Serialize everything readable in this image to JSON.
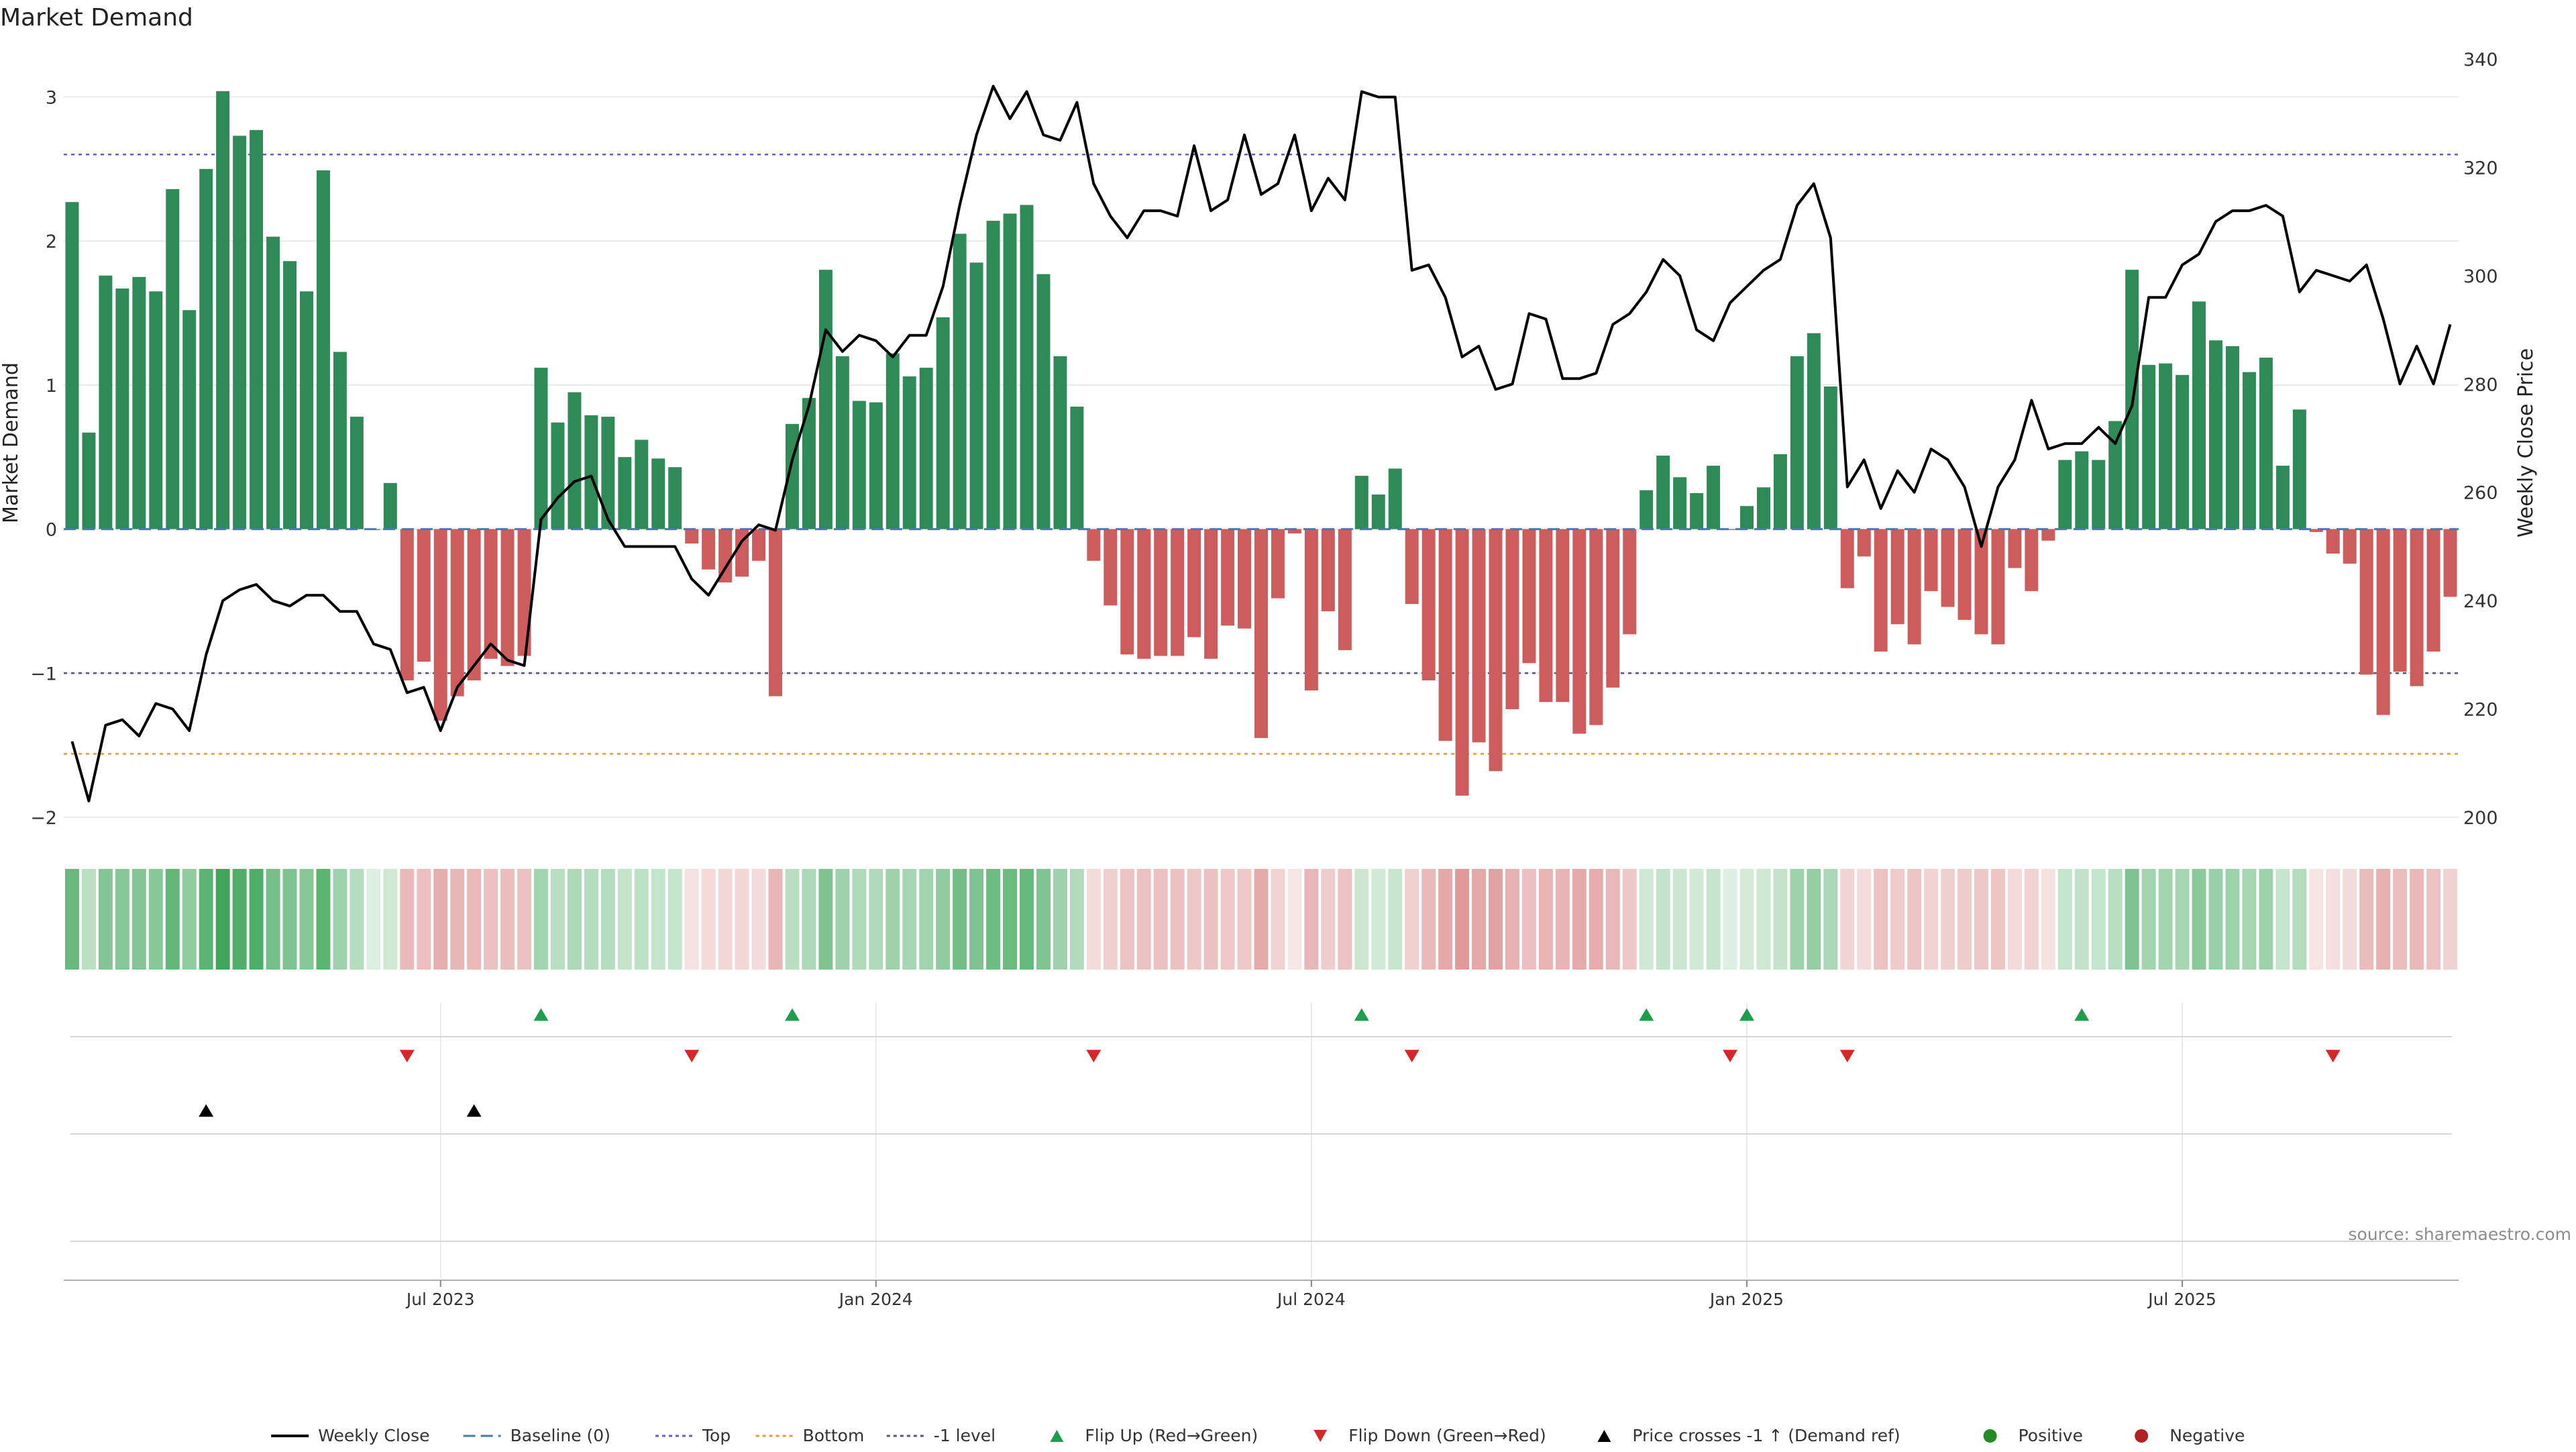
{
  "chart_data": {
    "type": "bar",
    "title": "Market Demand",
    "ylabel": "Market Demand",
    "y2label": "Weekly Close Price",
    "source": "source: sharemaestro.com",
    "ylim": [
      -2,
      3.3
    ],
    "y2lim": [
      200,
      341
    ],
    "yticks": [
      -2,
      -1,
      0,
      1,
      2,
      3
    ],
    "y2ticks": [
      200,
      220,
      240,
      260,
      280,
      300,
      320,
      340
    ],
    "xtick_labels": [
      {
        "label": "Jul 2023",
        "index": 22
      },
      {
        "label": "Jan 2024",
        "index": 48
      },
      {
        "label": "Jul 2024",
        "index": 74
      },
      {
        "label": "Jan 2025",
        "index": 100
      },
      {
        "label": "Jul 2025",
        "index": 126
      }
    ],
    "reference_lines": {
      "baseline": 0,
      "top": 2.6,
      "bottom": -1.56,
      "minus_one": -1
    },
    "series": [
      {
        "name": "Market Demand",
        "values": [
          2.27,
          0.67,
          1.76,
          1.67,
          1.75,
          1.65,
          2.36,
          1.52,
          2.5,
          3.04,
          2.73,
          2.77,
          2.03,
          1.86,
          1.65,
          2.49,
          1.23,
          0.78,
          0.0,
          0.32,
          -1.05,
          -0.92,
          -1.33,
          -1.16,
          -1.05,
          -0.9,
          -0.95,
          -0.88,
          1.12,
          0.74,
          0.95,
          0.79,
          0.78,
          0.5,
          0.62,
          0.49,
          0.43,
          -0.1,
          -0.28,
          -0.37,
          -0.33,
          -0.22,
          -1.16,
          0.73,
          0.91,
          1.8,
          1.2,
          0.89,
          0.88,
          1.22,
          1.06,
          1.12,
          1.47,
          2.05,
          1.85,
          2.14,
          2.19,
          2.25,
          1.77,
          1.2,
          0.85,
          -0.22,
          -0.53,
          -0.87,
          -0.9,
          -0.88,
          -0.88,
          -0.75,
          -0.9,
          -0.67,
          -0.69,
          -1.45,
          -0.48,
          -0.03,
          -1.12,
          -0.57,
          -0.84,
          0.37,
          0.24,
          0.42,
          -0.52,
          -1.05,
          -1.47,
          -1.85,
          -1.48,
          -1.68,
          -1.25,
          -0.93,
          -1.2,
          -1.2,
          -1.42,
          -1.36,
          -1.1,
          -0.73,
          0.27,
          0.51,
          0.36,
          0.25,
          0.44,
          0.0,
          0.16,
          0.29,
          0.52,
          1.2,
          1.36,
          0.99,
          -0.41,
          -0.19,
          -0.85,
          -0.66,
          -0.8,
          -0.43,
          -0.54,
          -0.63,
          -0.73,
          -0.8,
          -0.27,
          -0.43,
          -0.08,
          0.48,
          0.54,
          0.48,
          0.75,
          1.8,
          1.14,
          1.15,
          1.07,
          1.58,
          1.31,
          1.27,
          1.09,
          1.19,
          0.44,
          0.83,
          -0.02,
          -0.17,
          -0.24,
          -1.01,
          -1.29,
          -0.99,
          -1.09,
          -0.85,
          -0.47
        ]
      },
      {
        "name": "Weekly Close",
        "values": [
          214,
          203,
          217,
          218,
          215,
          221,
          220,
          216,
          230,
          240,
          242,
          243,
          240,
          239,
          241,
          241,
          238,
          238,
          232,
          231,
          223,
          224,
          216,
          224,
          228,
          232,
          229,
          228,
          255,
          259,
          262,
          263,
          255,
          250,
          250,
          250,
          250,
          244,
          241,
          246,
          251,
          254,
          253,
          266,
          276,
          290,
          286,
          289,
          288,
          285,
          289,
          289,
          298,
          313,
          326,
          335,
          329,
          334,
          326,
          325,
          332,
          317,
          311,
          307,
          312,
          312,
          311,
          324,
          312,
          314,
          326,
          315,
          317,
          326,
          312,
          318,
          314,
          334,
          333,
          333,
          301,
          302,
          296,
          285,
          287,
          279,
          280,
          293,
          292,
          281,
          281,
          282,
          291,
          293,
          297,
          303,
          300,
          290,
          288,
          295,
          298,
          301,
          303,
          313,
          317,
          307,
          261,
          266,
          257,
          264,
          260,
          268,
          266,
          261,
          250,
          261,
          266,
          277,
          268,
          269,
          269,
          272,
          269,
          276,
          296,
          296,
          302,
          304,
          310,
          312,
          312,
          313,
          311,
          297,
          301,
          300,
          299,
          302,
          292,
          280,
          287,
          280,
          291
        ]
      }
    ],
    "heat_strip": [
      0.66,
      0.2,
      0.51,
      0.49,
      0.51,
      0.48,
      0.69,
      0.44,
      0.73,
      0.89,
      0.8,
      0.81,
      0.59,
      0.54,
      0.48,
      0.73,
      0.36,
      0.23,
      0.0,
      0.09,
      -0.31,
      -0.27,
      -0.39,
      -0.34,
      -0.31,
      -0.26,
      -0.28,
      -0.26,
      0.33,
      0.22,
      0.28,
      0.23,
      0.23,
      0.15,
      0.18,
      0.14,
      0.13,
      -0.03,
      -0.08,
      -0.11,
      -0.1,
      -0.06,
      -0.34,
      0.21,
      0.27,
      0.53,
      0.35,
      0.26,
      0.26,
      0.36,
      0.31,
      0.33,
      0.43,
      0.6,
      0.54,
      0.63,
      0.64,
      0.66,
      0.52,
      0.35,
      0.25,
      -0.06,
      -0.16,
      -0.25,
      -0.26,
      -0.26,
      -0.26,
      -0.22,
      -0.26,
      -0.2,
      -0.2,
      -0.42,
      -0.14,
      -0.01,
      -0.33,
      -0.17,
      -0.25,
      0.11,
      0.07,
      0.12,
      -0.15,
      -0.31,
      -0.43,
      -0.54,
      -0.43,
      -0.49,
      -0.37,
      -0.27,
      -0.35,
      -0.35,
      -0.42,
      -0.4,
      -0.32,
      -0.21,
      0.08,
      0.15,
      0.11,
      0.07,
      0.13,
      0.0,
      0.05,
      0.09,
      0.15,
      0.35,
      0.4,
      0.29,
      -0.12,
      -0.06,
      -0.25,
      -0.19,
      -0.23,
      -0.13,
      -0.16,
      -0.18,
      -0.21,
      -0.23,
      -0.08,
      -0.13,
      -0.02,
      0.14,
      0.16,
      0.14,
      0.22,
      0.53,
      0.33,
      0.34,
      0.31,
      0.46,
      0.38,
      0.37,
      0.32,
      0.35,
      0.13,
      0.24,
      -0.01,
      -0.05,
      -0.07,
      -0.3,
      -0.38,
      -0.29,
      -0.32,
      -0.25,
      -0.14
    ],
    "flip_up_indices": [
      28,
      43,
      77,
      94,
      100,
      120
    ],
    "flip_down_indices": [
      20,
      37,
      61,
      80,
      99,
      106,
      135
    ],
    "price_cross_indices": [
      8,
      24
    ],
    "legend": [
      {
        "key": "close",
        "label": "Weekly Close"
      },
      {
        "key": "baseline",
        "label": "Baseline (0)"
      },
      {
        "key": "top",
        "label": "Top"
      },
      {
        "key": "bottom",
        "label": "Bottom"
      },
      {
        "key": "minus1",
        "label": "-1 level"
      },
      {
        "key": "flipup",
        "label": "Flip Up (Red→Green)"
      },
      {
        "key": "flipdown",
        "label": "Flip Down (Green→Red)"
      },
      {
        "key": "cross",
        "label": "Price crosses -1 ↑ (Demand ref)"
      },
      {
        "key": "positive",
        "label": "Positive"
      },
      {
        "key": "negative",
        "label": "Negative"
      }
    ],
    "colors": {
      "positive": "#2e8b57",
      "negative": "#cd5c5c",
      "close": "#000000",
      "baseline": "#4a78b0",
      "top": "#6a5acd",
      "bottom": "#e69a3a",
      "minus1": "#555577",
      "flipup": "#1e9e4a",
      "flipdown": "#d62728",
      "legend_positive": "#228b22",
      "legend_negative": "#b22222",
      "grid": "#e3e3e3",
      "strip_green": "#2e9e4a",
      "strip_red": "#cd5c5c"
    }
  }
}
